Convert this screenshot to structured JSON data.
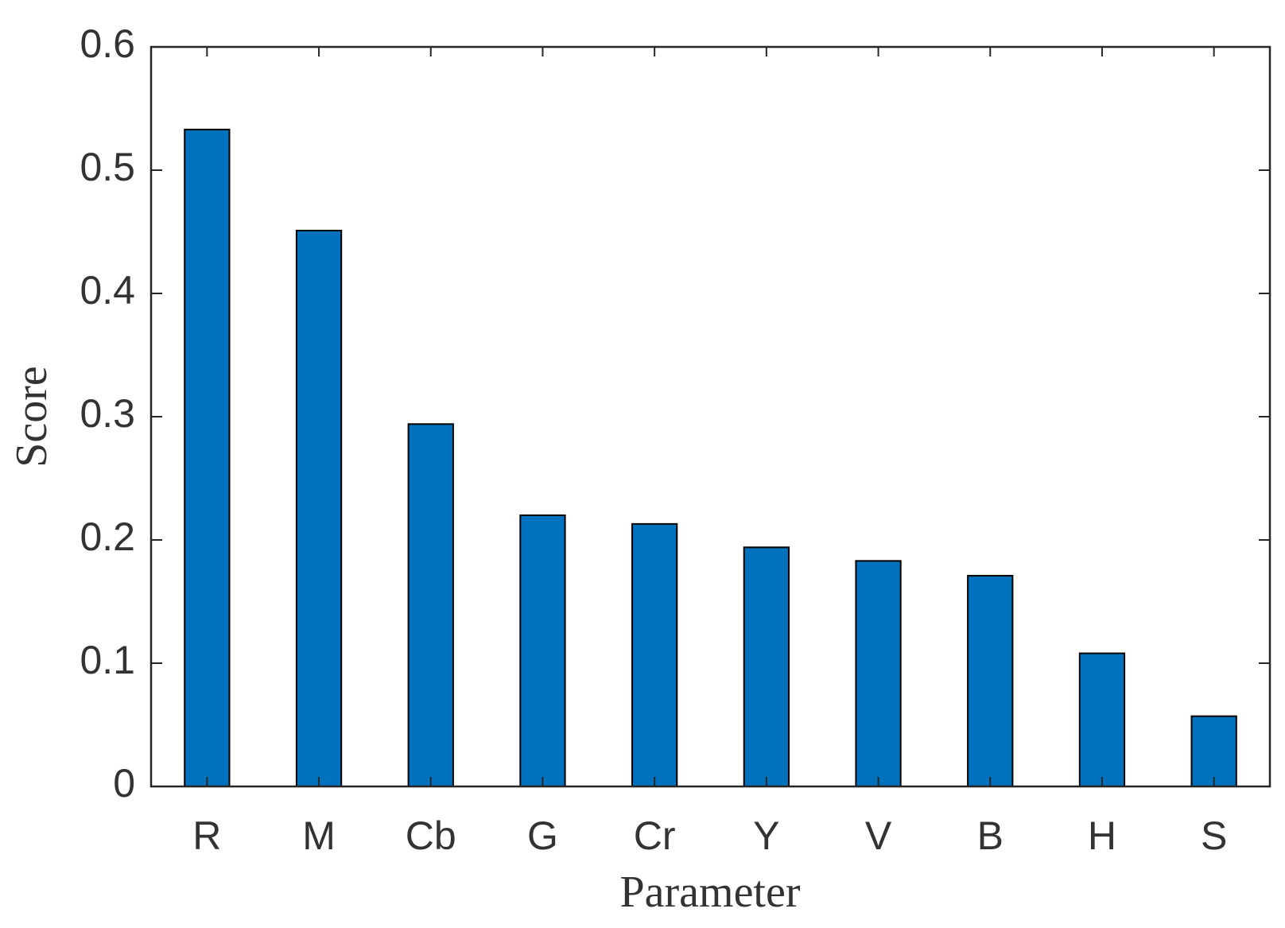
{
  "chart_data": {
    "type": "bar",
    "xlabel": "Parameter",
    "ylabel": "Score",
    "categories": [
      "R",
      "M",
      "Cb",
      "G",
      "Cr",
      "Y",
      "V",
      "B",
      "H",
      "S"
    ],
    "values": [
      0.533,
      0.451,
      0.294,
      0.22,
      0.213,
      0.194,
      0.183,
      0.171,
      0.108,
      0.057
    ],
    "color": "#0072bd",
    "ylim": [
      0,
      0.6
    ],
    "yticks": [
      0,
      0.1,
      0.2,
      0.3,
      0.4,
      0.5,
      0.6
    ]
  }
}
